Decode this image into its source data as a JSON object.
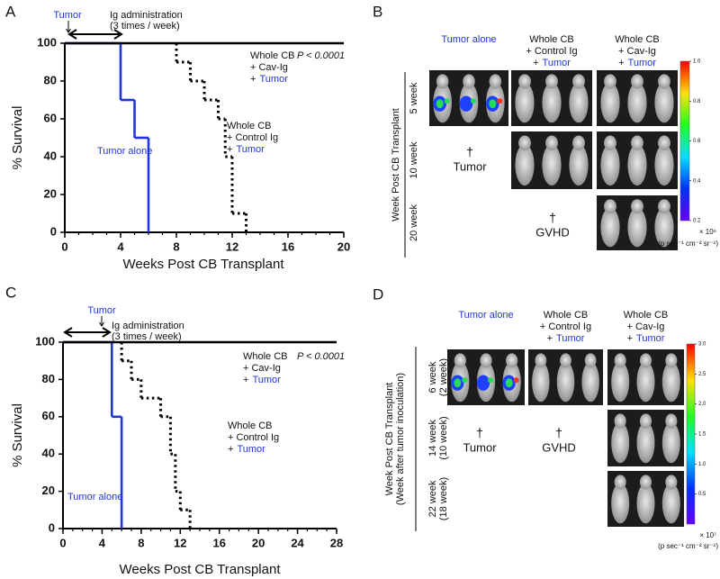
{
  "highlight_color": "#1f35d8",
  "chart_data": [
    {
      "type": "step",
      "panel": "A",
      "x_label": "Weeks Post CB Transplant",
      "y_label": "% Survival",
      "xlim": [
        0,
        20
      ],
      "ylim": [
        0,
        100
      ],
      "xticks": [
        0,
        4,
        8,
        12,
        16,
        20
      ],
      "xminor_ticks": [
        0,
        1,
        2,
        3,
        4,
        5,
        6,
        7,
        8,
        9,
        10,
        11,
        12,
        13,
        14,
        15,
        16,
        17,
        18,
        19,
        20
      ],
      "yticks": [
        0,
        20,
        40,
        60,
        80,
        100
      ],
      "annotations": {
        "tumor": "Tumor",
        "ig_lines": [
          "Ig administration",
          "(3 times / week)"
        ],
        "p_value": "P < 0.0001"
      },
      "series": [
        {
          "label_lines": [
            [
              "Tumor alone"
            ]
          ],
          "color": "#1f35d8",
          "line_style": "solid",
          "x": [
            0,
            4,
            5,
            6
          ],
          "y": [
            100,
            70,
            50,
            0
          ]
        },
        {
          "label_lines": [
            [
              "Whole CB"
            ],
            [
              "+ Control Ig"
            ],
            [
              "+",
              "Tumor"
            ]
          ],
          "color": "#000000",
          "line_style": "dotted",
          "x": [
            8,
            8,
            9,
            10,
            11,
            11.5,
            12,
            13
          ],
          "y": [
            100,
            90,
            80,
            70,
            60,
            40,
            10,
            0
          ]
        },
        {
          "label_lines": [
            [
              "Whole CB"
            ],
            [
              "+ Cav-Ig"
            ],
            [
              "+",
              "Tumor"
            ]
          ],
          "color": "#000000",
          "line_style": "solid",
          "x": [
            0,
            20
          ],
          "y": [
            100,
            100
          ]
        }
      ]
    },
    {
      "type": "step",
      "panel": "C",
      "x_label": "Weeks Post CB Transplant",
      "y_label": "% Survival",
      "xlim": [
        0,
        28
      ],
      "ylim": [
        0,
        100
      ],
      "xticks": [
        0,
        4,
        8,
        12,
        16,
        20,
        24,
        28
      ],
      "xminor_ticks": [
        0,
        1,
        2,
        3,
        4,
        5,
        6,
        7,
        8,
        9,
        10,
        11,
        12,
        13,
        14,
        15,
        16,
        17,
        18,
        19,
        20,
        21,
        22,
        23,
        24,
        25,
        26,
        27,
        28
      ],
      "yticks": [
        0,
        20,
        40,
        60,
        80,
        100
      ],
      "annotations": {
        "tumor": "Tumor",
        "ig_lines": [
          "Ig administration",
          "(3 times / week)"
        ],
        "p_value": "P < 0.0001"
      },
      "series": [
        {
          "label_lines": [
            [
              "Tumor alone"
            ]
          ],
          "color": "#1f35d8",
          "line_style": "solid",
          "x": [
            0,
            5,
            6
          ],
          "y": [
            100,
            60,
            0
          ]
        },
        {
          "label_lines": [
            [
              "Whole CB"
            ],
            [
              "+ Control Ig"
            ],
            [
              "+",
              "Tumor"
            ]
          ],
          "color": "#000000",
          "line_style": "dotted",
          "x": [
            6,
            6,
            7,
            8,
            10,
            11,
            11.5,
            12,
            13
          ],
          "y": [
            100,
            90,
            80,
            70,
            60,
            40,
            20,
            10,
            0
          ]
        },
        {
          "label_lines": [
            [
              "Whole CB"
            ],
            [
              "+ Cav-Ig"
            ],
            [
              "+",
              "Tumor"
            ]
          ],
          "color": "#000000",
          "line_style": "solid",
          "x": [
            0,
            28
          ],
          "y": [
            100,
            100
          ]
        }
      ]
    }
  ],
  "image_panels": [
    {
      "panel": "B",
      "columns": [
        [
          [
            "Tumor alone"
          ]
        ],
        [
          [
            "Whole CB"
          ],
          [
            "+ Control Ig"
          ],
          [
            "+",
            "Tumor"
          ]
        ],
        [
          [
            "Whole CB"
          ],
          [
            "+ Cav-Ig"
          ],
          [
            "+",
            "Tumor"
          ]
        ]
      ],
      "rows": [
        [
          "5 week"
        ],
        [
          "10 week"
        ],
        [
          "20 week"
        ]
      ],
      "y_label": [
        "Week Post CB Transplant"
      ],
      "deaths": [
        {
          "symbol": "†",
          "label": "Tumor"
        },
        {
          "symbol": "†",
          "label": "GVHD"
        }
      ],
      "colorbar": {
        "clim": [
          0.2,
          1.0
        ],
        "ticks": [
          {
            "value": 1,
            "label": "1.0"
          },
          0.8,
          0.6,
          0.4,
          0.2
        ],
        "multiplier": "× 10⁶",
        "units": "(p sec⁻¹ cm⁻² sr⁻¹)"
      }
    },
    {
      "panel": "D",
      "columns": [
        [
          [
            "Tumor alone"
          ]
        ],
        [
          [
            "Whole CB"
          ],
          [
            "+ Control Ig"
          ],
          [
            "+",
            "Tumor"
          ]
        ],
        [
          [
            "Whole CB"
          ],
          [
            "+ Cav-Ig"
          ],
          [
            "+",
            "Tumor"
          ]
        ]
      ],
      "rows": [
        [
          "6 week",
          "(2 week)"
        ],
        [
          "14 week",
          "(10 week)"
        ],
        [
          "22 week",
          "(18 week)"
        ]
      ],
      "y_label": [
        "Week Post CB Transplant",
        "(Week after tumor inoculation)"
      ],
      "deaths": [
        {
          "symbol": "†",
          "label": "Tumor"
        },
        {
          "symbol": "†",
          "label": "GVHD"
        }
      ],
      "colorbar": {
        "clim": [
          0,
          3
        ],
        "ticks": [
          {
            "value": 3,
            "label": "3.0"
          },
          2.5,
          {
            "value": 2,
            "label": "2.0"
          },
          1.5,
          {
            "value": 1,
            "label": "1.0"
          },
          0.5
        ],
        "multiplier": "× 10⁷",
        "units": "(p sec⁻¹ cm⁻² sr⁻¹)"
      }
    }
  ]
}
